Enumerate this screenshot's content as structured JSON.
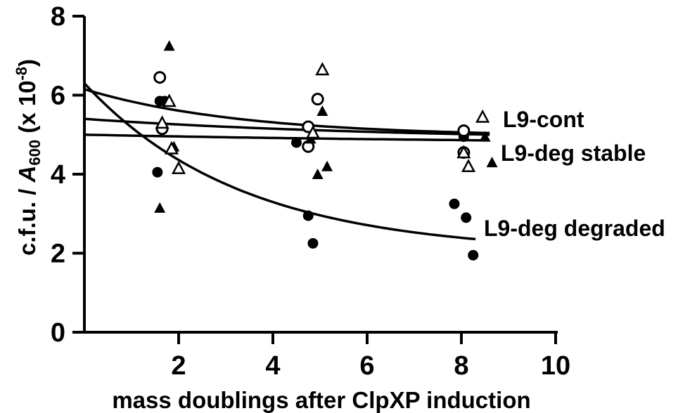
{
  "chart_data": {
    "type": "scatter",
    "title": "",
    "xlabel": "mass doublings after ClpXP induction",
    "ylabel": {
      "prefix": "c.f.u. / ",
      "italic": "A",
      "subscript": "600",
      "suffix_open": " (x 10",
      "superscript": "-8",
      "suffix_close": ")"
    },
    "xlim": [
      0,
      10
    ],
    "ylim": [
      0,
      8
    ],
    "xticks": [
      "2",
      "4",
      "6",
      "8",
      "10"
    ],
    "yticks": [
      "0",
      "2",
      "4",
      "6",
      "8"
    ],
    "grid": false,
    "series": [
      {
        "marker": "filled-circle",
        "points": [
          [
            1.6,
            5.85
          ],
          [
            1.7,
            5.85
          ],
          [
            1.55,
            4.05
          ],
          [
            4.5,
            4.8
          ],
          [
            4.75,
            2.95
          ],
          [
            4.85,
            2.25
          ],
          [
            7.85,
            3.25
          ],
          [
            8.1,
            2.9
          ],
          [
            8.25,
            1.95
          ],
          [
            8.05,
            4.95
          ]
        ]
      },
      {
        "marker": "open-circle",
        "points": [
          [
            1.6,
            6.45
          ],
          [
            1.65,
            5.15
          ],
          [
            4.75,
            5.2
          ],
          [
            4.75,
            4.7
          ],
          [
            4.95,
            5.9
          ],
          [
            8.05,
            5.1
          ],
          [
            8.05,
            4.55
          ]
        ]
      },
      {
        "marker": "filled-triangle",
        "points": [
          [
            1.8,
            7.25
          ],
          [
            1.6,
            3.15
          ],
          [
            1.9,
            4.7
          ],
          [
            5.05,
            5.6
          ],
          [
            5.15,
            4.2
          ],
          [
            4.95,
            4.0
          ],
          [
            4.8,
            4.9
          ],
          [
            8.5,
            4.95
          ],
          [
            8.65,
            4.3
          ]
        ]
      },
      {
        "marker": "open-triangle",
        "points": [
          [
            1.65,
            5.3
          ],
          [
            1.8,
            5.85
          ],
          [
            1.85,
            4.65
          ],
          [
            2.0,
            4.15
          ],
          [
            5.05,
            6.65
          ],
          [
            4.85,
            5.05
          ],
          [
            8.45,
            5.45
          ],
          [
            8.05,
            4.55
          ],
          [
            8.15,
            4.2
          ]
        ]
      }
    ],
    "curves": [
      {
        "name": "L9-cont",
        "start_y": 6.15,
        "end_y": 4.95,
        "decay": 0.3,
        "x_end": 8.6
      },
      {
        "name": "L9-deg stable",
        "start_y": 5.4,
        "end_y": 4.85,
        "decay": 0.15,
        "x_end": 8.6
      },
      {
        "name": "L9-deg stable",
        "start_y": 5.0,
        "end_y": 4.75,
        "decay": 0.1,
        "x_end": 8.6
      },
      {
        "name": "L9-deg degraded",
        "start_y": 6.3,
        "end_y": 2.0,
        "decay": 0.3,
        "x_end": 8.3
      }
    ],
    "curve_labels": [
      "L9-cont",
      "L9-deg stable",
      "L9-deg degraded"
    ]
  }
}
